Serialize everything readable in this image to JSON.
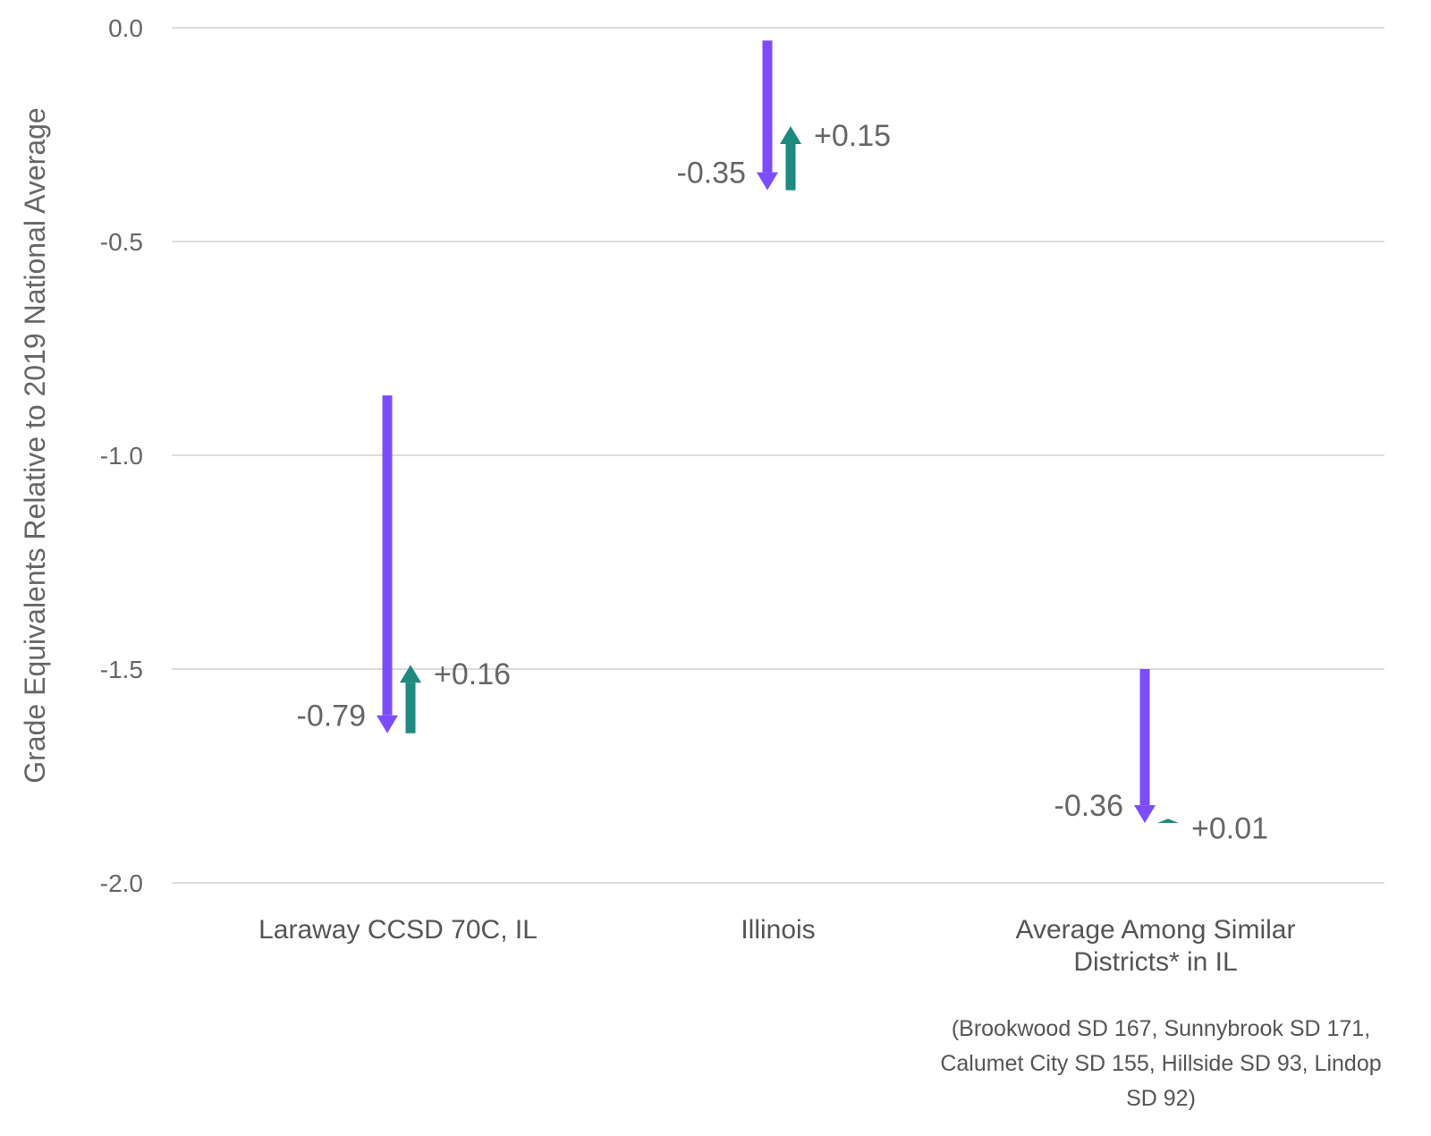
{
  "chart_data": {
    "type": "arrow",
    "ylabel": "Grade Equivalents Relative to 2019 National Average",
    "ylim": [
      -2.0,
      0.0
    ],
    "yticks": [
      {
        "value": 0.0,
        "label": "0.0"
      },
      {
        "value": -0.5,
        "label": "-0.5"
      },
      {
        "value": -1.0,
        "label": "-1.0"
      },
      {
        "value": -1.5,
        "label": "-1.5"
      },
      {
        "value": -2.0,
        "label": "-2.0"
      }
    ],
    "grid": true,
    "categories": [
      [
        "Laraway CCSD 70C, IL"
      ],
      [
        "Illinois"
      ],
      [
        "Average Among Similar",
        "Districts* in IL"
      ]
    ],
    "decline": {
      "color": "#7c4dff",
      "start": [
        -0.86,
        -0.03,
        -1.5
      ],
      "end": [
        -1.65,
        -0.38,
        -1.86
      ],
      "labels": [
        "-0.79",
        "-0.35",
        "-0.36"
      ]
    },
    "recovery": {
      "color": "#1e8a80",
      "start": [
        -1.65,
        -0.38,
        -1.86
      ],
      "end": [
        -1.49,
        -0.23,
        -1.85
      ],
      "labels": [
        "+0.16",
        "+0.15",
        "+0.01"
      ]
    },
    "footnote": [
      "(Brookwood SD 167, Sunnybrook SD 171,",
      "Calumet City SD 155, Hillside SD 93, Lindop",
      "SD 92)"
    ]
  }
}
